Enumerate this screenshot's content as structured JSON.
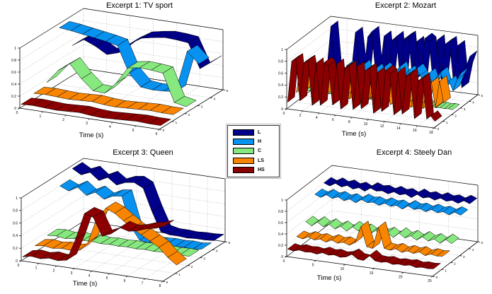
{
  "figure": {
    "background": "#ffffff"
  },
  "legend": {
    "entries": [
      {
        "label": "L",
        "color": "#00008B"
      },
      {
        "label": "H",
        "color": "#0892F0"
      },
      {
        "label": "C",
        "color": "#86E87E"
      },
      {
        "label": "LS",
        "color": "#F98400"
      },
      {
        "label": "HS",
        "color": "#8B0000"
      }
    ]
  },
  "chart_data": [
    {
      "type": "ribbon3d",
      "title": "Excerpt 1: TV sport",
      "xlabel": "Time (s)",
      "x_max": 6,
      "x_step": 0.5,
      "x_ticks": [
        0,
        1,
        2,
        3,
        4,
        5,
        6
      ],
      "z_ticks": [
        0,
        0.2,
        0.4,
        0.6,
        0.8,
        1
      ],
      "z_range": [
        0,
        1
      ],
      "depth_ticks": [
        0,
        1,
        2,
        3,
        4,
        5
      ],
      "series": [
        {
          "name": "L",
          "values": [
            0.5,
            0.63,
            0.55,
            0.44,
            0.5,
            0.68,
            0.8,
            0.84,
            0.87,
            0.86,
            0.84,
            0.44,
            0.58
          ]
        },
        {
          "name": "H",
          "values": [
            0.93,
            0.91,
            0.88,
            0.85,
            0.82,
            0.78,
            0.35,
            0.15,
            0.13,
            0.14,
            0.16,
            0.86,
            0.68
          ]
        },
        {
          "name": "C",
          "values": [
            0.15,
            0.38,
            0.52,
            0.3,
            0.13,
            0.12,
            0.32,
            0.6,
            0.63,
            0.62,
            0.6,
            0.14,
            0.1
          ]
        },
        {
          "name": "LS",
          "values": [
            0.1,
            0.11,
            0.1,
            0.09,
            0.1,
            0.11,
            0.09,
            0.08,
            0.09,
            0.1,
            0.11,
            0.1,
            0.1
          ]
        },
        {
          "name": "HS",
          "values": [
            0.05,
            0.06,
            0.05,
            0.04,
            0.05,
            0.06,
            0.04,
            0.03,
            0.04,
            0.05,
            0.06,
            0.05,
            0.05
          ]
        }
      ]
    },
    {
      "type": "ribbon3d",
      "title": "Excerpt 2: Mozart",
      "xlabel": "Time (s)",
      "x_max": 18,
      "x_step": 0.5,
      "x_ticks": [
        0,
        2,
        4,
        6,
        8,
        10,
        12,
        14,
        16,
        18
      ],
      "z_ticks": [
        0,
        0.2,
        0.4,
        0.6,
        0.8,
        1
      ],
      "z_range": [
        0,
        1
      ],
      "depth_ticks": [
        0,
        1,
        2,
        3,
        4,
        5
      ],
      "series": [
        {
          "name": "L",
          "values": [
            0.1,
            0.2,
            0.95,
            0.15,
            0.1,
            0.15,
            0.12,
            0.22,
            0.9,
            0.3,
            0.18,
            0.85,
            0.95,
            0.2,
            0.3,
            0.9,
            0.22,
            0.85,
            0.92,
            0.15,
            0.9,
            0.95,
            0.2,
            0.88,
            0.3,
            0.95,
            0.9,
            0.2,
            0.95,
            0.3,
            0.9,
            0.95,
            0.25,
            0.9,
            0.2,
            0.55,
            0.75
          ]
        },
        {
          "name": "H",
          "values": [
            0.25,
            0.35,
            0.28,
            0.42,
            0.22,
            0.36,
            0.3,
            0.26,
            0.45,
            0.32,
            0.22,
            0.42,
            0.5,
            0.26,
            0.36,
            0.46,
            0.3,
            0.5,
            0.4,
            0.26,
            0.46,
            0.55,
            0.3,
            0.5,
            0.35,
            0.55,
            0.45,
            0.26,
            0.5,
            0.32,
            0.46,
            0.55,
            0.3,
            0.42,
            0.26,
            0.46,
            0.58
          ]
        },
        {
          "name": "C",
          "values": [
            0.07,
            0.08,
            0.07,
            0.08,
            0.07,
            0.08,
            0.07,
            0.08,
            0.07,
            0.08,
            0.07,
            0.08,
            0.07,
            0.08,
            0.07,
            0.08,
            0.07,
            0.08,
            0.07,
            0.08,
            0.07,
            0.08,
            0.07,
            0.08,
            0.07,
            0.08,
            0.07,
            0.08,
            0.07,
            0.08,
            0.07,
            0.08,
            0.07,
            0.08,
            0.07,
            0.08,
            0.07
          ]
        },
        {
          "name": "LS",
          "values": [
            0.15,
            0.62,
            0.2,
            0.66,
            0.15,
            0.22,
            0.6,
            0.16,
            0.55,
            0.2,
            0.15,
            0.62,
            0.2,
            0.16,
            0.52,
            0.2,
            0.6,
            0.15,
            0.22,
            0.56,
            0.15,
            0.2,
            0.52,
            0.15,
            0.22,
            0.16,
            0.46,
            0.2,
            0.15,
            0.52,
            0.2,
            0.16,
            0.56,
            0.62,
            0.2,
            0.66,
            0.3
          ]
        },
        {
          "name": "HS",
          "values": [
            0.1,
            0.8,
            0.85,
            0.15,
            0.8,
            0.85,
            0.1,
            0.82,
            0.12,
            0.85,
            0.8,
            0.15,
            0.85,
            0.1,
            0.8,
            0.85,
            0.12,
            0.85,
            0.15,
            0.8,
            0.85,
            0.1,
            0.8,
            0.15,
            0.85,
            0.8,
            0.12,
            0.85,
            0.15,
            0.8,
            0.85,
            0.1,
            0.75,
            0.8,
            0.12,
            0.18,
            0.1
          ]
        }
      ]
    },
    {
      "type": "ribbon3d",
      "title": "Excerpt 3: Queen",
      "xlabel": "Time (s)",
      "x_max": 8,
      "x_step": 0.5,
      "x_ticks": [
        0,
        1,
        2,
        3,
        4,
        5,
        6,
        7,
        8
      ],
      "z_ticks": [
        0,
        0.2,
        0.4,
        0.6,
        0.8,
        1
      ],
      "z_range": [
        0,
        1
      ],
      "depth_ticks": [
        0,
        1,
        2,
        3,
        4,
        5
      ],
      "series": [
        {
          "name": "L",
          "values": [
            0.95,
            0.87,
            0.93,
            0.82,
            0.89,
            0.79,
            0.85,
            0.87,
            0.8,
            0.45,
            0.15,
            0.12,
            0.12,
            0.11,
            0.12,
            0.12,
            0.13
          ]
        },
        {
          "name": "H",
          "values": [
            0.8,
            0.74,
            0.82,
            0.71,
            0.78,
            0.69,
            0.76,
            0.78,
            0.32,
            0.12,
            0.1,
            0.1,
            0.11,
            0.1,
            0.11,
            0.1,
            0.12
          ]
        },
        {
          "name": "C",
          "values": [
            0.14,
            0.15,
            0.13,
            0.15,
            0.14,
            0.15,
            0.13,
            0.14,
            0.13,
            0.14,
            0.13,
            0.14,
            0.13,
            0.14,
            0.13,
            0.14,
            0.13
          ]
        },
        {
          "name": "LS",
          "values": [
            0.1,
            0.12,
            0.1,
            0.12,
            0.11,
            0.13,
            0.28,
            0.68,
            0.86,
            0.8,
            0.7,
            0.6,
            0.52,
            0.44,
            0.36,
            0.22,
            0.12
          ]
        },
        {
          "name": "HS",
          "values": [
            0.05,
            0.08,
            0.06,
            0.09,
            0.07,
            0.1,
            0.45,
            0.88,
            0.84,
            0.56,
            0.62,
            0.74,
            0.7,
            0.73,
            0.78,
            0.81,
            0.86
          ]
        }
      ]
    },
    {
      "type": "ribbon3d",
      "title": "Excerpt 4: Steely Dan",
      "xlabel": "Time (s)",
      "x_max": 25,
      "x_step": 1,
      "x_ticks": [
        0,
        5,
        10,
        15,
        20,
        25
      ],
      "z_ticks": [
        0,
        0.2,
        0.4,
        0.6,
        0.8,
        1
      ],
      "z_range": [
        0,
        1
      ],
      "depth_ticks": [
        0,
        1,
        2,
        3,
        4,
        5
      ],
      "series": [
        {
          "name": "L",
          "values": [
            0.8,
            0.76,
            0.82,
            0.77,
            0.81,
            0.76,
            0.8,
            0.75,
            0.82,
            0.78,
            0.8,
            0.76,
            0.81,
            0.77,
            0.8,
            0.75,
            0.82,
            0.77,
            0.8,
            0.76,
            0.81,
            0.77,
            0.8,
            0.76,
            0.82,
            0.78
          ]
        },
        {
          "name": "H",
          "values": [
            0.72,
            0.68,
            0.74,
            0.69,
            0.73,
            0.68,
            0.72,
            0.67,
            0.74,
            0.7,
            0.72,
            0.68,
            0.73,
            0.69,
            0.72,
            0.67,
            0.74,
            0.69,
            0.72,
            0.68,
            0.73,
            0.69,
            0.72,
            0.68,
            0.74,
            0.7
          ]
        },
        {
          "name": "C",
          "values": [
            0.36,
            0.3,
            0.38,
            0.31,
            0.37,
            0.3,
            0.36,
            0.29,
            0.38,
            0.32,
            0.36,
            0.3,
            0.37,
            0.31,
            0.36,
            0.29,
            0.38,
            0.31,
            0.36,
            0.3,
            0.37,
            0.31,
            0.36,
            0.3,
            0.38,
            0.32
          ]
        },
        {
          "name": "LS",
          "values": [
            0.22,
            0.19,
            0.24,
            0.2,
            0.23,
            0.19,
            0.24,
            0.2,
            0.23,
            0.19,
            0.25,
            0.55,
            0.21,
            0.19,
            0.58,
            0.22,
            0.2,
            0.24,
            0.19,
            0.23,
            0.2,
            0.24,
            0.19,
            0.23,
            0.21,
            0.22
          ]
        },
        {
          "name": "HS",
          "values": [
            0.12,
            0.1,
            0.13,
            0.11,
            0.12,
            0.1,
            0.14,
            0.11,
            0.13,
            0.1,
            0.12,
            0.18,
            0.11,
            0.1,
            0.2,
            0.12,
            0.11,
            0.13,
            0.1,
            0.12,
            0.11,
            0.13,
            0.1,
            0.12,
            0.11,
            0.12
          ]
        }
      ]
    }
  ]
}
